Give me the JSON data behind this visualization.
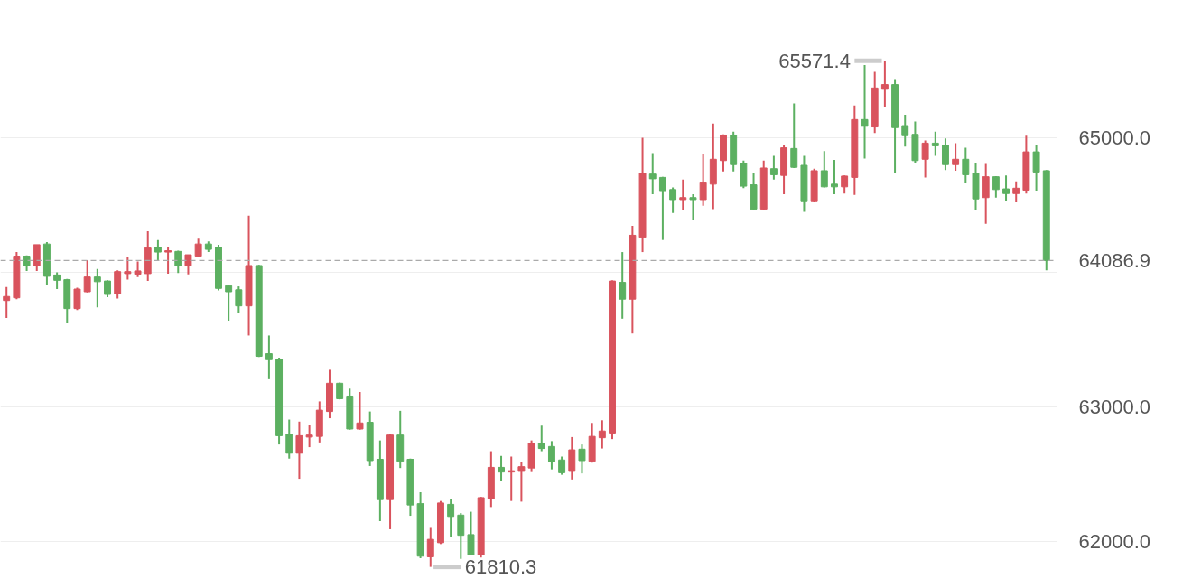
{
  "chart_data": {
    "type": "candlestick",
    "categories": [
      null,
      null,
      null,
      null,
      null,
      null,
      null,
      null,
      null,
      null,
      null,
      null,
      null,
      null,
      null,
      null,
      null,
      null,
      null,
      null,
      null,
      null,
      null,
      null,
      null,
      null,
      null,
      null,
      null,
      null,
      null,
      null,
      null,
      null,
      null,
      null,
      null,
      null,
      null,
      null,
      null,
      null,
      null,
      null,
      null,
      null,
      null,
      null,
      null,
      null,
      null,
      null,
      null,
      null,
      null,
      null,
      null,
      null,
      null,
      null,
      null,
      null,
      null,
      null,
      null,
      null,
      null,
      null,
      null,
      null,
      null,
      null,
      null,
      null,
      null,
      null,
      null,
      null,
      null,
      null,
      null,
      null,
      null,
      null,
      null,
      null,
      null,
      null,
      null,
      null,
      null,
      null,
      null,
      null,
      null,
      null,
      null,
      null,
      null,
      null,
      null,
      null,
      null,
      null
    ],
    "ohlc": [
      [
        63790,
        63890,
        63660,
        63820
      ],
      [
        63810,
        64150,
        63800,
        64120
      ],
      [
        64120,
        64125,
        64010,
        64050
      ],
      [
        64050,
        64205,
        64010,
        64205
      ],
      [
        64210,
        64225,
        63905,
        63970
      ],
      [
        63980,
        64000,
        63875,
        63940
      ],
      [
        63945,
        63950,
        63620,
        63730
      ],
      [
        63730,
        63885,
        63720,
        63875
      ],
      [
        63855,
        64090,
        63850,
        63965
      ],
      [
        63965,
        64025,
        63740,
        63930
      ],
      [
        63935,
        63940,
        63815,
        63835
      ],
      [
        63840,
        64015,
        63805,
        64005
      ],
      [
        63990,
        64115,
        63945,
        64005
      ],
      [
        63985,
        64080,
        63965,
        64010
      ],
      [
        63990,
        64305,
        63935,
        64180
      ],
      [
        64185,
        64240,
        64090,
        64150
      ],
      [
        64150,
        64190,
        63990,
        64160
      ],
      [
        64155,
        64160,
        63995,
        64050
      ],
      [
        64050,
        64130,
        63985,
        64130
      ],
      [
        64120,
        64250,
        64115,
        64210
      ],
      [
        64210,
        64230,
        64150,
        64170
      ],
      [
        64185,
        64205,
        63865,
        63880
      ],
      [
        63900,
        63905,
        63640,
        63855
      ],
      [
        63870,
        63895,
        63700,
        63750
      ],
      [
        63750,
        64420,
        63530,
        64050
      ],
      [
        64050,
        64055,
        63370,
        63375
      ],
      [
        63395,
        63530,
        63205,
        63350
      ],
      [
        63355,
        63365,
        62720,
        62785
      ],
      [
        62795,
        62905,
        62615,
        62655
      ],
      [
        62655,
        62890,
        62465,
        62785
      ],
      [
        62775,
        62865,
        62700,
        62790
      ],
      [
        62780,
        63040,
        62735,
        62975
      ],
      [
        62965,
        63275,
        62915,
        63175
      ],
      [
        63175,
        63180,
        63055,
        63060
      ],
      [
        63080,
        63135,
        62830,
        62835
      ],
      [
        62835,
        63110,
        62830,
        62880
      ],
      [
        62885,
        62965,
        62560,
        62600
      ],
      [
        62610,
        62750,
        62150,
        62310
      ],
      [
        62310,
        62795,
        62090,
        62790
      ],
      [
        62790,
        62970,
        62545,
        62595
      ],
      [
        62610,
        62615,
        62190,
        62270
      ],
      [
        62280,
        62365,
        61875,
        61890
      ],
      [
        61885,
        62100,
        61810.3,
        62015
      ],
      [
        61990,
        62300,
        61980,
        62285
      ],
      [
        62275,
        62315,
        62030,
        62185
      ],
      [
        62195,
        62210,
        61870,
        62045
      ],
      [
        62050,
        62220,
        61895,
        61900
      ],
      [
        61900,
        62330,
        61880,
        62325
      ],
      [
        62315,
        62670,
        62255,
        62550
      ],
      [
        62550,
        62635,
        62450,
        62515
      ],
      [
        62515,
        62630,
        62300,
        62525
      ],
      [
        62520,
        62590,
        62295,
        62555
      ],
      [
        62545,
        62750,
        62515,
        62730
      ],
      [
        62730,
        62860,
        62670,
        62690
      ],
      [
        62705,
        62745,
        62535,
        62590
      ],
      [
        62605,
        62630,
        62495,
        62510
      ],
      [
        62520,
        62775,
        62460,
        62680
      ],
      [
        62685,
        62720,
        62505,
        62600
      ],
      [
        62595,
        62880,
        62585,
        62780
      ],
      [
        62770,
        62900,
        62690,
        62820
      ],
      [
        62805,
        63940,
        62760,
        63935
      ],
      [
        63925,
        64150,
        63655,
        63800
      ],
      [
        63800,
        64345,
        63545,
        64275
      ],
      [
        64260,
        65000,
        64150,
        64735
      ],
      [
        64730,
        64885,
        64580,
        64695
      ],
      [
        64705,
        64710,
        64240,
        64600
      ],
      [
        64615,
        64630,
        64440,
        64540
      ],
      [
        64540,
        64690,
        64465,
        64555
      ],
      [
        64555,
        64580,
        64385,
        64540
      ],
      [
        64540,
        64880,
        64495,
        64665
      ],
      [
        64655,
        65105,
        64470,
        64840
      ],
      [
        64830,
        65025,
        64750,
        65020
      ],
      [
        65020,
        65045,
        64750,
        64800
      ],
      [
        64810,
        64830,
        64625,
        64640
      ],
      [
        64650,
        64740,
        64460,
        64470
      ],
      [
        64470,
        64830,
        64465,
        64775
      ],
      [
        64770,
        64865,
        64690,
        64725
      ],
      [
        64720,
        64945,
        64580,
        64925
      ],
      [
        64920,
        65255,
        64775,
        64780
      ],
      [
        64795,
        64865,
        64450,
        64525
      ],
      [
        64525,
        64770,
        64520,
        64755
      ],
      [
        64755,
        64900,
        64630,
        64635
      ],
      [
        64655,
        64835,
        64580,
        64635
      ],
      [
        64635,
        64720,
        64585,
        64715
      ],
      [
        64705,
        65240,
        64575,
        65135
      ],
      [
        65135,
        65540,
        64845,
        65085
      ],
      [
        65080,
        65490,
        65035,
        65370
      ],
      [
        65360,
        65571.4,
        65225,
        65395
      ],
      [
        65395,
        65430,
        64740,
        65075
      ],
      [
        65090,
        65170,
        64935,
        65015
      ],
      [
        65025,
        65120,
        64815,
        64830
      ],
      [
        64840,
        64980,
        64705,
        64960
      ],
      [
        64960,
        65045,
        64865,
        64940
      ],
      [
        64945,
        64995,
        64760,
        64800
      ],
      [
        64800,
        64960,
        64755,
        64840
      ],
      [
        64840,
        64925,
        64660,
        64725
      ],
      [
        64735,
        64815,
        64465,
        64545
      ],
      [
        64555,
        64805,
        64360,
        64710
      ],
      [
        64710,
        64715,
        64555,
        64615
      ],
      [
        64620,
        64720,
        64530,
        64585
      ],
      [
        64585,
        64675,
        64520,
        64625
      ],
      [
        64610,
        65015,
        64585,
        64895
      ],
      [
        64895,
        64950,
        64600,
        64745
      ],
      [
        64755,
        64760,
        64015,
        64086.9
      ]
    ],
    "colors": [
      "#d9535d",
      "#d9535d",
      "#5cb061",
      "#d9535d",
      "#5cb061",
      "#5cb061",
      "#5cb061",
      "#d9535d",
      "#d9535d",
      "#5cb061",
      "#5cb061",
      "#d9535d",
      "#d9535d",
      "#d9535d",
      "#d9535d",
      "#5cb061",
      "#d9535d",
      "#5cb061",
      "#d9535d",
      "#d9535d",
      "#5cb061",
      "#5cb061",
      "#5cb061",
      "#5cb061",
      "#d9535d",
      "#5cb061",
      "#5cb061",
      "#5cb061",
      "#5cb061",
      "#d9535d",
      "#d9535d",
      "#d9535d",
      "#d9535d",
      "#5cb061",
      "#5cb061",
      "#d9535d",
      "#5cb061",
      "#5cb061",
      "#d9535d",
      "#5cb061",
      "#5cb061",
      "#5cb061",
      "#d9535d",
      "#d9535d",
      "#5cb061",
      "#5cb061",
      "#5cb061",
      "#d9535d",
      "#d9535d",
      "#5cb061",
      "#d9535d",
      "#d9535d",
      "#d9535d",
      "#5cb061",
      "#5cb061",
      "#5cb061",
      "#d9535d",
      "#5cb061",
      "#d9535d",
      "#d9535d",
      "#d9535d",
      "#5cb061",
      "#d9535d",
      "#d9535d",
      "#5cb061",
      "#5cb061",
      "#5cb061",
      "#d9535d",
      "#5cb061",
      "#d9535d",
      "#d9535d",
      "#d9535d",
      "#5cb061",
      "#5cb061",
      "#5cb061",
      "#d9535d",
      "#5cb061",
      "#d9535d",
      "#5cb061",
      "#5cb061",
      "#d9535d",
      "#5cb061",
      "#5cb061",
      "#d9535d",
      "#d9535d",
      "#5cb061",
      "#d9535d",
      "#d9535d",
      "#5cb061",
      "#5cb061",
      "#5cb061",
      "#d9535d",
      "#5cb061",
      "#5cb061",
      "#d9535d",
      "#5cb061",
      "#5cb061",
      "#d9535d",
      "#5cb061",
      "#5cb061",
      "#d9535d",
      "#d9535d",
      "#5cb061",
      "#5cb061"
    ],
    "ylim": [
      61650,
      66020
    ],
    "yticks": [
      {
        "value": 62000,
        "label": "62000.0"
      },
      {
        "value": 63000,
        "label": "63000.0"
      },
      {
        "value": 64000,
        "label": null
      },
      {
        "value": 65000,
        "label": "65000.0"
      }
    ],
    "tick_labels": "y",
    "grid": "y",
    "ref_lines": [
      {
        "axis": "y",
        "value": 64086.9,
        "label": "64086.9",
        "color": "#aaaaaa",
        "line_style": "dashed"
      }
    ],
    "annotations": [
      "65571.4",
      "61810.3"
    ]
  }
}
